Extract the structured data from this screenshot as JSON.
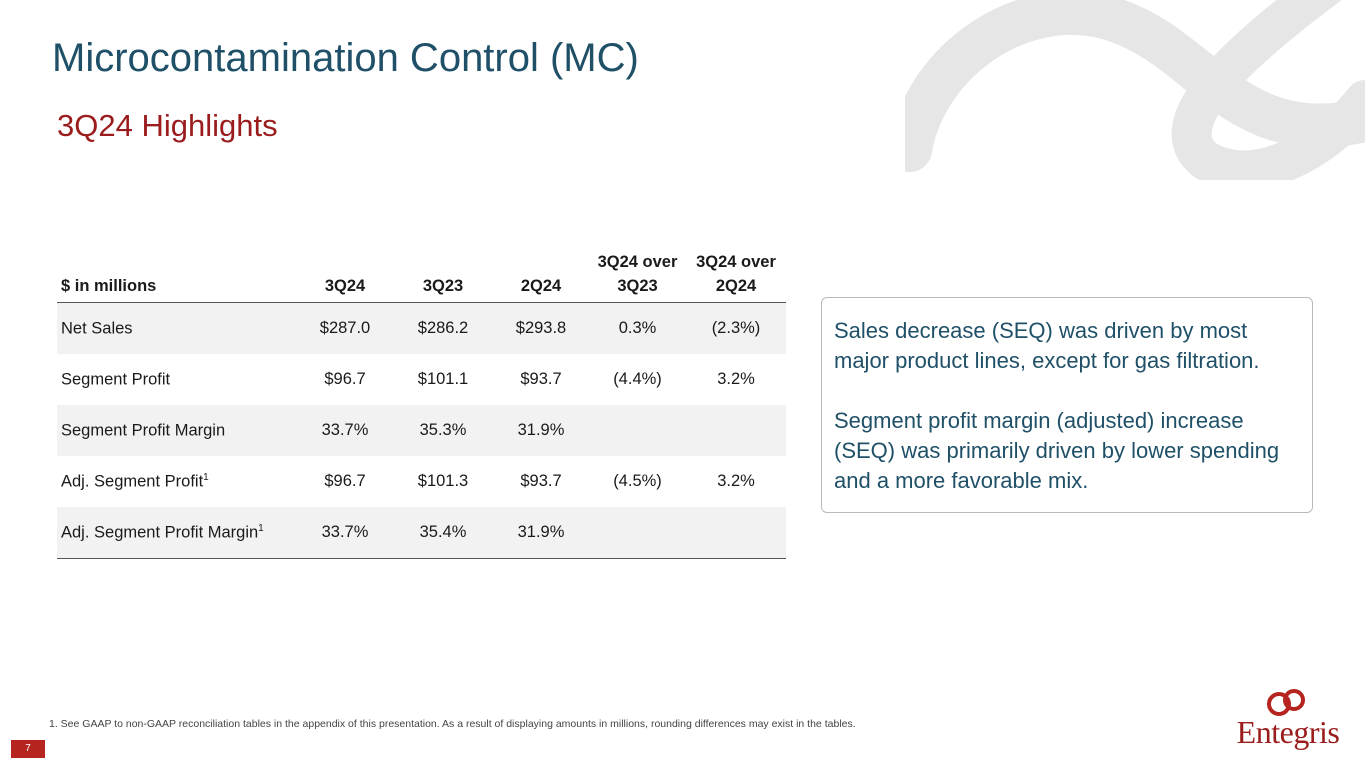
{
  "title": "Microcontamination Control (MC)",
  "subtitle": "3Q24 Highlights",
  "table": {
    "headers": [
      "$ in millions",
      "3Q24",
      "3Q23",
      "2Q24",
      "3Q24 over 3Q23",
      "3Q24 over 2Q24"
    ],
    "rows": [
      {
        "label": "Net Sales",
        "footnote": "",
        "values": [
          "$287.0",
          "$286.2",
          "$293.8",
          "0.3%",
          "(2.3%)"
        ]
      },
      {
        "label": "Segment Profit",
        "footnote": "",
        "values": [
          "$96.7",
          "$101.1",
          "$93.7",
          "(4.4%)",
          "3.2%"
        ]
      },
      {
        "label": "Segment Profit Margin",
        "footnote": "",
        "values": [
          "33.7%",
          "35.3%",
          "31.9%",
          "",
          ""
        ]
      },
      {
        "label": "Adj. Segment Profit",
        "footnote": "1",
        "values": [
          "$96.7",
          "$101.3",
          "$93.7",
          "(4.5%)",
          "3.2%"
        ]
      },
      {
        "label": "Adj. Segment Profit Margin",
        "footnote": "1",
        "values": [
          "33.7%",
          "35.4%",
          "31.9%",
          "",
          ""
        ]
      }
    ]
  },
  "callout": {
    "paragraph1": "Sales decrease (SEQ) was driven by most major product lines, except for gas filtration.",
    "paragraph2": "Segment profit margin (adjusted) increase (SEQ) was primarily driven by lower spending and a more favorable mix."
  },
  "footnote": "1. See GAAP to non-GAAP reconciliation tables in the appendix of this presentation. As a result of displaying amounts in millions, rounding differences may exist in the tables.",
  "page_number": "7",
  "brand": {
    "name": "Entegris",
    "logo_icon": "entegris-logo-icon"
  },
  "colors": {
    "title": "#1f5068",
    "subtitle": "#9b1c1c",
    "accent": "#b5241f",
    "row_shade": "#f2f2f2"
  }
}
